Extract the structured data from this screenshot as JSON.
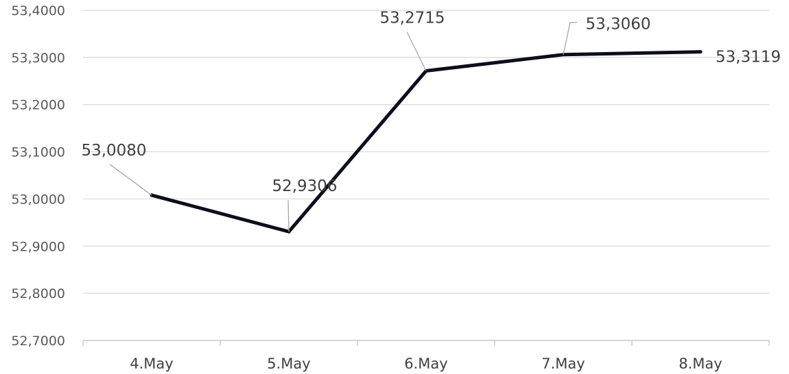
{
  "chart_data": {
    "type": "line",
    "title": "",
    "xlabel": "",
    "ylabel": "",
    "categories": [
      "4.May",
      "5.May",
      "6.May",
      "7.May",
      "8.May"
    ],
    "series": [
      {
        "values": [
          53.008,
          52.9306,
          53.2715,
          53.306,
          53.3119
        ]
      }
    ],
    "data_labels": [
      "53,0080",
      "52,9306",
      "53,2715",
      "53,3060",
      "53,3119"
    ],
    "ylim": [
      52.7,
      53.4
    ],
    "y_ticks": [
      52.7,
      52.8,
      52.9,
      53.0,
      53.1,
      53.2,
      53.3,
      53.4
    ],
    "y_tick_labels": [
      "52,7000",
      "52,8000",
      "52,9000",
      "53,0000",
      "53,1000",
      "53,2000",
      "53,3000",
      "53,4000"
    ],
    "grid": true,
    "legend": "none",
    "colors": {
      "line": "#0d0d1f",
      "grid": "#d9d9d9",
      "axis": "#bfbfbf",
      "text": "#404040",
      "leader": "#a6a6a6"
    }
  }
}
